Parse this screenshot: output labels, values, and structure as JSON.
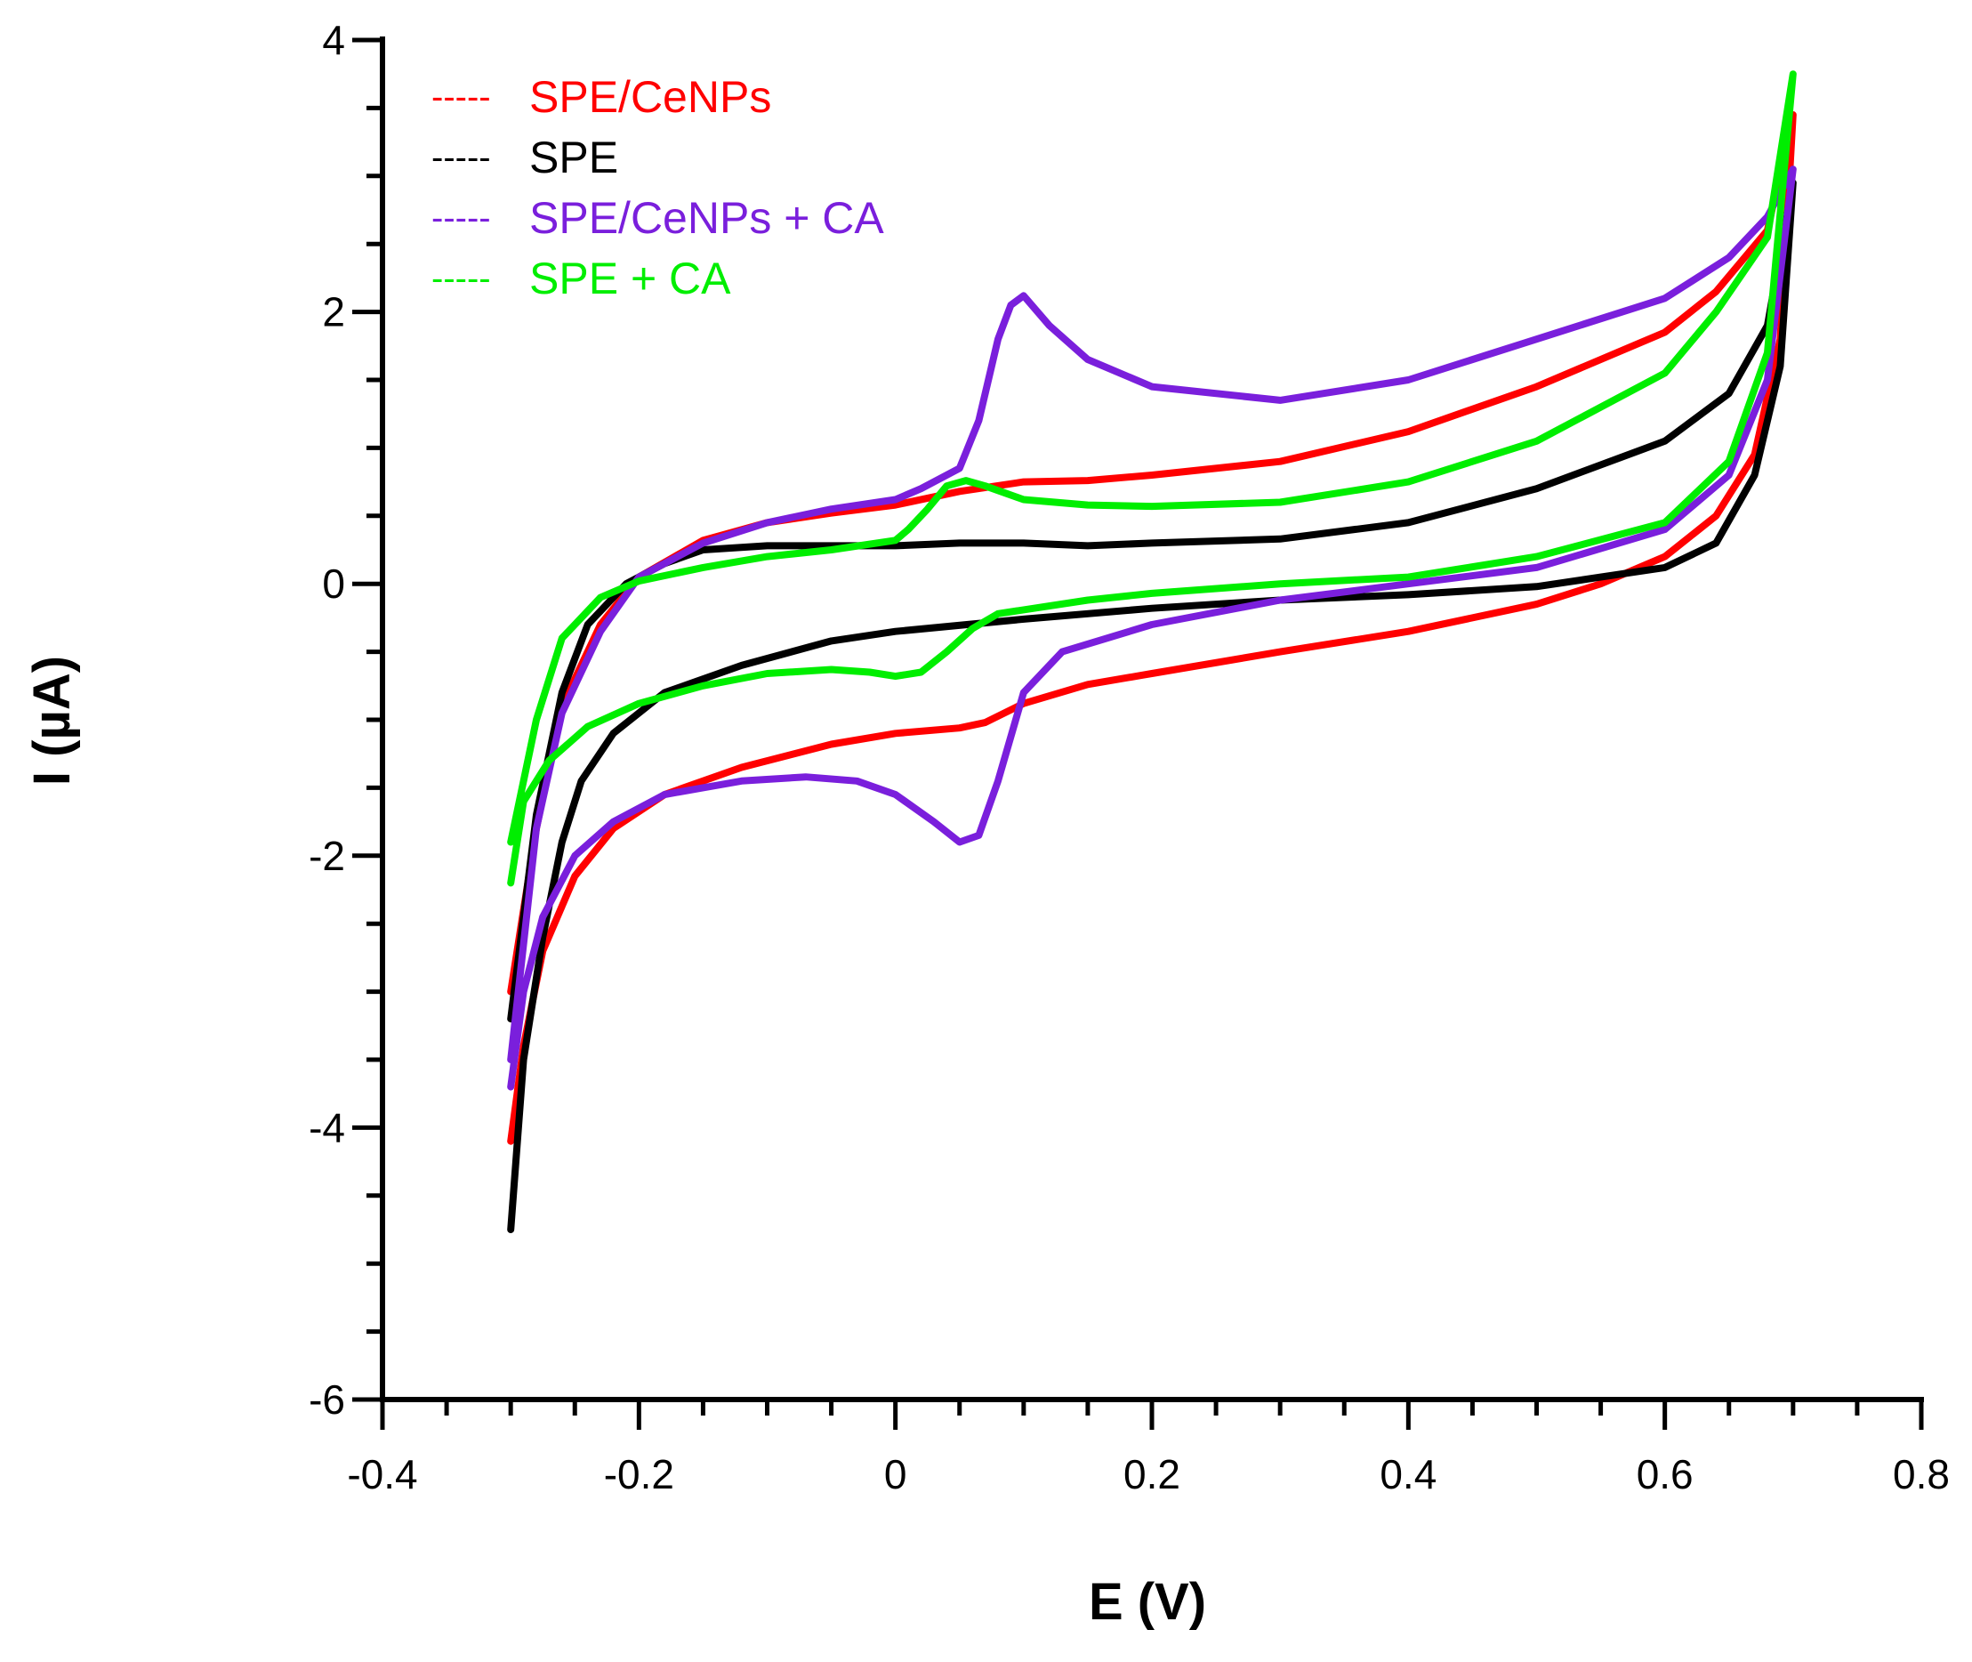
{
  "chart_data": {
    "type": "line",
    "title": "",
    "xlabel": "E (V)",
    "ylabel": "I (µA)",
    "xlim": [
      -0.4,
      0.8
    ],
    "ylim": [
      -6,
      4
    ],
    "x_ticks": [
      -0.4,
      -0.2,
      0,
      0.2,
      0.4,
      0.6,
      0.8
    ],
    "x_tick_labels": [
      "-0.4",
      "-0.2",
      "0",
      "0.2",
      "0.4",
      "0.6",
      "0.8"
    ],
    "y_ticks": [
      -6,
      -4,
      -2,
      0,
      2,
      4
    ],
    "y_tick_labels": [
      "-6",
      "-4",
      "-2",
      "0",
      "2",
      "4"
    ],
    "grid": false,
    "legend_position": "top-left",
    "legend_marker": "-----",
    "series": [
      {
        "name": "SPE/CeNPs",
        "color": "#ff0000",
        "points": [
          [
            -0.3,
            -4.1
          ],
          [
            -0.29,
            -3.4
          ],
          [
            -0.275,
            -2.7
          ],
          [
            -0.25,
            -2.15
          ],
          [
            -0.22,
            -1.8
          ],
          [
            -0.18,
            -1.55
          ],
          [
            -0.12,
            -1.35
          ],
          [
            -0.05,
            -1.18
          ],
          [
            0.0,
            -1.1
          ],
          [
            0.05,
            -1.06
          ],
          [
            0.07,
            -1.02
          ],
          [
            0.1,
            -0.88
          ],
          [
            0.15,
            -0.74
          ],
          [
            0.2,
            -0.66
          ],
          [
            0.3,
            -0.5
          ],
          [
            0.4,
            -0.35
          ],
          [
            0.5,
            -0.15
          ],
          [
            0.55,
            0.0
          ],
          [
            0.6,
            0.2
          ],
          [
            0.64,
            0.5
          ],
          [
            0.67,
            0.95
          ],
          [
            0.69,
            1.8
          ],
          [
            0.7,
            3.45
          ],
          [
            0.68,
            2.6
          ],
          [
            0.64,
            2.15
          ],
          [
            0.6,
            1.85
          ],
          [
            0.5,
            1.45
          ],
          [
            0.4,
            1.12
          ],
          [
            0.3,
            0.9
          ],
          [
            0.2,
            0.8
          ],
          [
            0.15,
            0.76
          ],
          [
            0.1,
            0.75
          ],
          [
            0.05,
            0.68
          ],
          [
            0.0,
            0.58
          ],
          [
            -0.05,
            0.52
          ],
          [
            -0.1,
            0.45
          ],
          [
            -0.15,
            0.32
          ],
          [
            -0.2,
            0.05
          ],
          [
            -0.23,
            -0.3
          ],
          [
            -0.26,
            -0.9
          ],
          [
            -0.28,
            -1.8
          ],
          [
            -0.3,
            -3.0
          ]
        ]
      },
      {
        "name": "SPE",
        "color": "#000000",
        "points": [
          [
            -0.3,
            -4.75
          ],
          [
            -0.29,
            -3.5
          ],
          [
            -0.275,
            -2.6
          ],
          [
            -0.26,
            -1.9
          ],
          [
            -0.245,
            -1.45
          ],
          [
            -0.22,
            -1.1
          ],
          [
            -0.18,
            -0.8
          ],
          [
            -0.12,
            -0.6
          ],
          [
            -0.05,
            -0.42
          ],
          [
            0.0,
            -0.35
          ],
          [
            0.1,
            -0.26
          ],
          [
            0.2,
            -0.18
          ],
          [
            0.3,
            -0.12
          ],
          [
            0.4,
            -0.08
          ],
          [
            0.5,
            -0.02
          ],
          [
            0.55,
            0.05
          ],
          [
            0.6,
            0.12
          ],
          [
            0.64,
            0.3
          ],
          [
            0.67,
            0.8
          ],
          [
            0.69,
            1.6
          ],
          [
            0.7,
            2.95
          ],
          [
            0.68,
            1.9
          ],
          [
            0.65,
            1.4
          ],
          [
            0.6,
            1.05
          ],
          [
            0.5,
            0.7
          ],
          [
            0.4,
            0.45
          ],
          [
            0.3,
            0.33
          ],
          [
            0.2,
            0.3
          ],
          [
            0.15,
            0.28
          ],
          [
            0.1,
            0.3
          ],
          [
            0.05,
            0.3
          ],
          [
            0.0,
            0.28
          ],
          [
            -0.1,
            0.28
          ],
          [
            -0.15,
            0.25
          ],
          [
            -0.18,
            0.15
          ],
          [
            -0.21,
            0.0
          ],
          [
            -0.24,
            -0.3
          ],
          [
            -0.26,
            -0.8
          ],
          [
            -0.28,
            -1.7
          ],
          [
            -0.3,
            -3.2
          ]
        ]
      },
      {
        "name": "SPE/CeNPs + CA",
        "color": "#7a1fdc",
        "points": [
          [
            -0.3,
            -3.7
          ],
          [
            -0.29,
            -3.0
          ],
          [
            -0.275,
            -2.45
          ],
          [
            -0.25,
            -2.0
          ],
          [
            -0.22,
            -1.75
          ],
          [
            -0.18,
            -1.55
          ],
          [
            -0.12,
            -1.45
          ],
          [
            -0.07,
            -1.42
          ],
          [
            -0.03,
            -1.45
          ],
          [
            0.0,
            -1.55
          ],
          [
            0.03,
            -1.75
          ],
          [
            0.05,
            -1.9
          ],
          [
            0.065,
            -1.85
          ],
          [
            0.08,
            -1.45
          ],
          [
            0.1,
            -0.8
          ],
          [
            0.13,
            -0.5
          ],
          [
            0.2,
            -0.3
          ],
          [
            0.3,
            -0.12
          ],
          [
            0.4,
            0.0
          ],
          [
            0.5,
            0.12
          ],
          [
            0.6,
            0.4
          ],
          [
            0.65,
            0.8
          ],
          [
            0.68,
            1.5
          ],
          [
            0.7,
            3.05
          ],
          [
            0.68,
            2.7
          ],
          [
            0.65,
            2.4
          ],
          [
            0.6,
            2.1
          ],
          [
            0.5,
            1.8
          ],
          [
            0.4,
            1.5
          ],
          [
            0.3,
            1.35
          ],
          [
            0.2,
            1.45
          ],
          [
            0.15,
            1.65
          ],
          [
            0.12,
            1.9
          ],
          [
            0.1,
            2.12
          ],
          [
            0.09,
            2.05
          ],
          [
            0.08,
            1.8
          ],
          [
            0.065,
            1.2
          ],
          [
            0.05,
            0.85
          ],
          [
            0.02,
            0.7
          ],
          [
            0.0,
            0.62
          ],
          [
            -0.05,
            0.55
          ],
          [
            -0.1,
            0.45
          ],
          [
            -0.15,
            0.3
          ],
          [
            -0.2,
            0.05
          ],
          [
            -0.23,
            -0.35
          ],
          [
            -0.26,
            -0.95
          ],
          [
            -0.28,
            -1.8
          ],
          [
            -0.3,
            -3.5
          ]
        ]
      },
      {
        "name": "SPE + CA",
        "color": "#00ee00",
        "points": [
          [
            -0.3,
            -2.2
          ],
          [
            -0.29,
            -1.6
          ],
          [
            -0.27,
            -1.3
          ],
          [
            -0.24,
            -1.05
          ],
          [
            -0.2,
            -0.88
          ],
          [
            -0.15,
            -0.75
          ],
          [
            -0.1,
            -0.66
          ],
          [
            -0.05,
            -0.63
          ],
          [
            -0.02,
            -0.65
          ],
          [
            0.0,
            -0.68
          ],
          [
            0.02,
            -0.65
          ],
          [
            0.04,
            -0.5
          ],
          [
            0.06,
            -0.33
          ],
          [
            0.08,
            -0.22
          ],
          [
            0.15,
            -0.12
          ],
          [
            0.2,
            -0.07
          ],
          [
            0.3,
            0.0
          ],
          [
            0.4,
            0.05
          ],
          [
            0.5,
            0.2
          ],
          [
            0.6,
            0.45
          ],
          [
            0.65,
            0.9
          ],
          [
            0.68,
            1.7
          ],
          [
            0.7,
            3.75
          ],
          [
            0.68,
            2.55
          ],
          [
            0.64,
            2.0
          ],
          [
            0.6,
            1.55
          ],
          [
            0.5,
            1.05
          ],
          [
            0.4,
            0.75
          ],
          [
            0.3,
            0.6
          ],
          [
            0.2,
            0.57
          ],
          [
            0.15,
            0.58
          ],
          [
            0.1,
            0.62
          ],
          [
            0.07,
            0.72
          ],
          [
            0.055,
            0.76
          ],
          [
            0.04,
            0.72
          ],
          [
            0.025,
            0.55
          ],
          [
            0.01,
            0.4
          ],
          [
            0.0,
            0.32
          ],
          [
            -0.05,
            0.25
          ],
          [
            -0.1,
            0.2
          ],
          [
            -0.15,
            0.12
          ],
          [
            -0.2,
            0.02
          ],
          [
            -0.23,
            -0.1
          ],
          [
            -0.26,
            -0.4
          ],
          [
            -0.28,
            -1.0
          ],
          [
            -0.3,
            -1.9
          ]
        ]
      }
    ]
  }
}
